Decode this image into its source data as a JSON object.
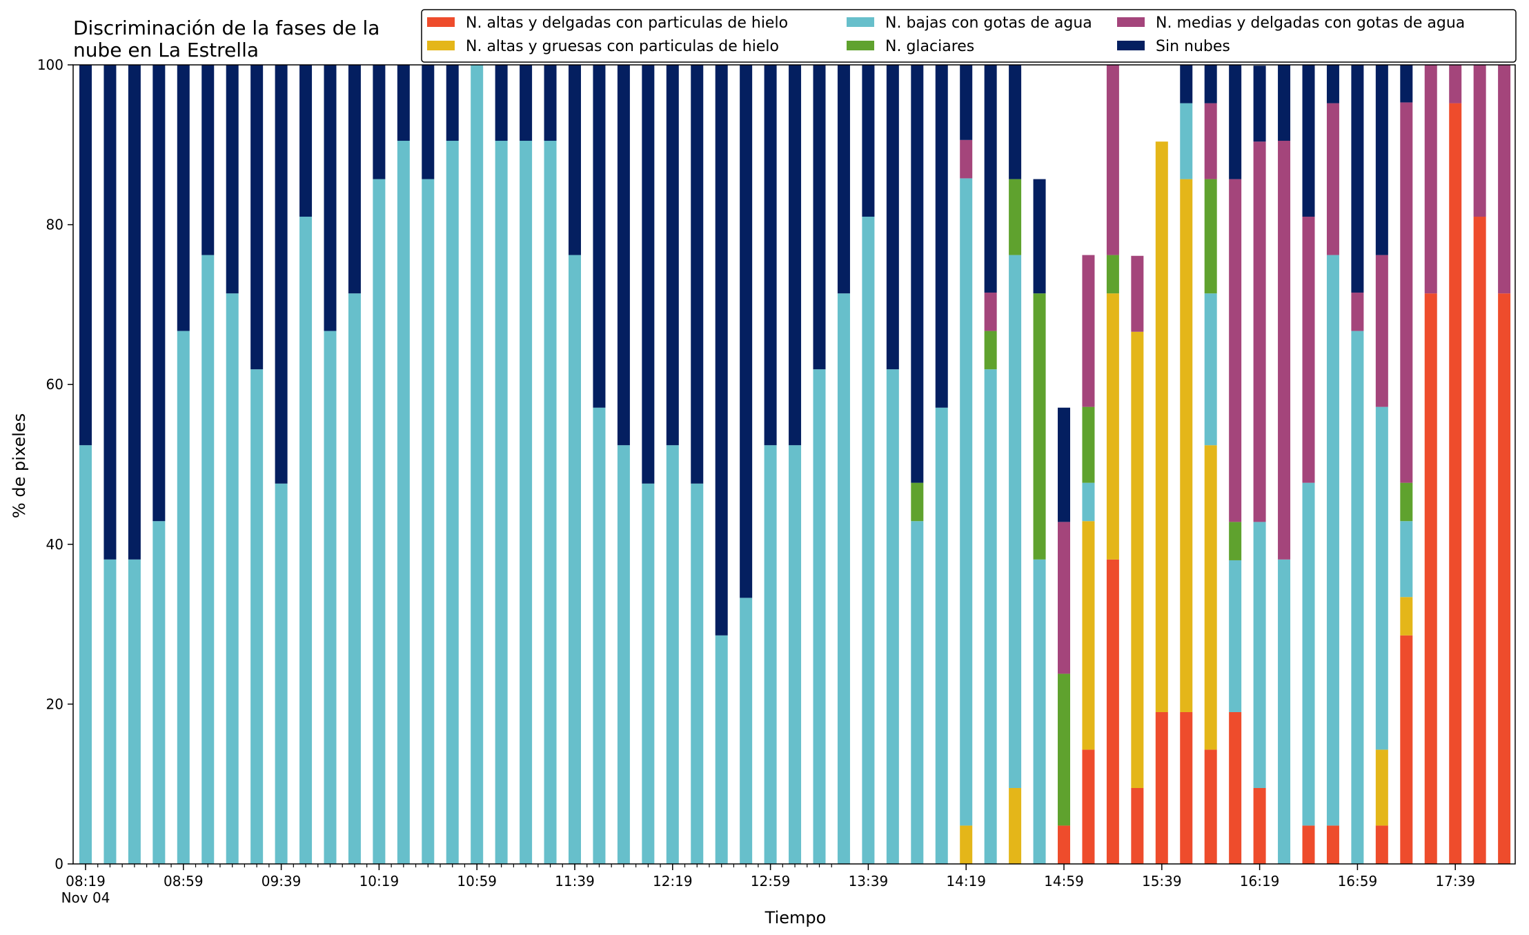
{
  "chart_data": {
    "type": "bar",
    "stacked": true,
    "title_lines": [
      "Discriminación de la fases de la",
      "nube en La Estrella"
    ],
    "xlabel": "Tiempo",
    "ylabel": "% de pixeles",
    "ylim": [
      0,
      100
    ],
    "yticks": [
      0,
      20,
      40,
      60,
      80,
      100
    ],
    "xtick_labels": [
      {
        "label": "08:19",
        "index": 0,
        "sub": "Nov 04"
      },
      {
        "label": "08:59",
        "index": 4
      },
      {
        "label": "09:39",
        "index": 8
      },
      {
        "label": "10:19",
        "index": 12
      },
      {
        "label": "10:59",
        "index": 16
      },
      {
        "label": "11:39",
        "index": 20
      },
      {
        "label": "12:19",
        "index": 24
      },
      {
        "label": "12:59",
        "index": 28
      },
      {
        "label": "13:39",
        "index": 32
      },
      {
        "label": "14:19",
        "index": 36
      },
      {
        "label": "14:59",
        "index": 40
      },
      {
        "label": "15:39",
        "index": 44
      },
      {
        "label": "16:19",
        "index": 48
      },
      {
        "label": "16:59",
        "index": 52
      },
      {
        "label": "17:39",
        "index": 56
      }
    ],
    "grid": false,
    "legend_position": "top-right",
    "series": [
      {
        "name": "N. altas y delgadas con particulas de hielo",
        "color": "#ee4c2c",
        "values": [
          0,
          0,
          0,
          0,
          0,
          0,
          0,
          0,
          0,
          0,
          0,
          0,
          0,
          0,
          0,
          0,
          0,
          0,
          0,
          0,
          0,
          0,
          0,
          0,
          0,
          0,
          0,
          0,
          0,
          0,
          0,
          0,
          0,
          0,
          0,
          0,
          0,
          0,
          0,
          0,
          4.8,
          14.3,
          38.1,
          9.5,
          19,
          19,
          14.3,
          19,
          9.5,
          0,
          4.8,
          4.8,
          0,
          4.8,
          28.6,
          71.4,
          95.2,
          81,
          71.4
        ]
      },
      {
        "name": "N. altas y gruesas con particulas de hielo",
        "color": "#e4b619",
        "values": [
          0,
          0,
          0,
          0,
          0,
          0,
          0,
          0,
          0,
          0,
          0,
          0,
          0,
          0,
          0,
          0,
          0,
          0,
          0,
          0,
          0,
          0,
          0,
          0,
          0,
          0,
          0,
          0,
          0,
          0,
          0,
          0,
          0,
          0,
          0,
          0,
          4.8,
          0,
          9.5,
          0,
          0,
          28.6,
          33.3,
          57.1,
          71.4,
          66.7,
          38.1,
          0,
          0,
          0,
          0,
          0,
          0,
          9.5,
          4.8,
          0,
          0,
          0,
          0
        ]
      },
      {
        "name": "N. bajas con gotas de agua",
        "color": "#67bfcb",
        "values": [
          52.4,
          38.1,
          38.1,
          42.9,
          66.7,
          76.2,
          71.4,
          61.9,
          47.6,
          81,
          66.7,
          71.4,
          85.7,
          90.5,
          85.7,
          90.5,
          100,
          90.5,
          90.5,
          90.5,
          76.2,
          57.1,
          52.4,
          47.6,
          52.4,
          47.6,
          28.6,
          33.3,
          52.4,
          52.4,
          61.9,
          71.4,
          81,
          61.9,
          42.9,
          57.1,
          81,
          61.9,
          66.7,
          38.1,
          0,
          4.8,
          0,
          0,
          0,
          9.5,
          19,
          19,
          33.3,
          38.1,
          42.9,
          71.4,
          66.7,
          42.9,
          9.5,
          0,
          0,
          0,
          0
        ]
      },
      {
        "name": "N. glaciares",
        "color": "#5fa22e",
        "values": [
          0,
          0,
          0,
          0,
          0,
          0,
          0,
          0,
          0,
          0,
          0,
          0,
          0,
          0,
          0,
          0,
          0,
          0,
          0,
          0,
          0,
          0,
          0,
          0,
          0,
          0,
          0,
          0,
          0,
          0,
          0,
          0,
          0,
          0,
          4.8,
          0,
          0,
          4.8,
          9.5,
          33.3,
          19,
          9.5,
          4.8,
          0,
          0,
          0,
          14.3,
          4.8,
          0,
          0,
          0,
          0,
          0,
          0,
          4.8,
          0,
          0,
          0,
          0
        ]
      },
      {
        "name": "N. medias y delgadas con gotas de agua",
        "color": "#a4457b",
        "values": [
          0,
          0,
          0,
          0,
          0,
          0,
          0,
          0,
          0,
          0,
          0,
          0,
          0,
          0,
          0,
          0,
          0,
          0,
          0,
          0,
          0,
          0,
          0,
          0,
          0,
          0,
          0,
          0,
          0,
          0,
          0,
          0,
          0,
          0,
          0,
          0,
          4.8,
          4.8,
          0,
          0,
          19,
          19,
          28.6,
          9.5,
          0,
          0,
          9.5,
          42.9,
          47.6,
          52.4,
          33.3,
          19,
          4.8,
          19,
          47.6,
          28.6,
          4.8,
          19,
          28.6
        ]
      },
      {
        "name": "Sin nubes",
        "color": "#041f60",
        "values": [
          47.6,
          61.9,
          61.9,
          57.1,
          33.3,
          23.8,
          28.6,
          38.1,
          52.4,
          19,
          33.3,
          28.6,
          14.3,
          9.5,
          14.3,
          9.5,
          0,
          9.5,
          9.5,
          9.5,
          23.8,
          42.9,
          47.6,
          52.4,
          47.6,
          52.4,
          71.4,
          66.7,
          47.6,
          47.6,
          38.1,
          28.6,
          19,
          38.1,
          52.4,
          42.9,
          9.5,
          28.6,
          14.3,
          14.3,
          14.3,
          0,
          0,
          0,
          0,
          4.8,
          4.8,
          14.3,
          9.5,
          9.5,
          19,
          4.8,
          28.6,
          23.8,
          4.8,
          0,
          0,
          0,
          0
        ]
      }
    ]
  }
}
